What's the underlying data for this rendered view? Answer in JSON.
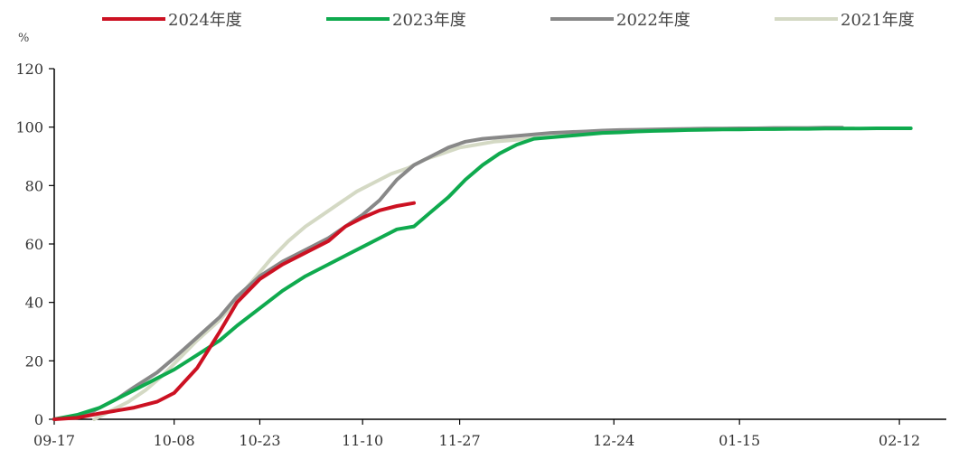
{
  "chart_data": {
    "type": "line",
    "ylabel": "%",
    "ylim": [
      0,
      120
    ],
    "yticks": [
      0,
      20,
      40,
      60,
      80,
      100,
      120
    ],
    "xlim": [
      0,
      154
    ],
    "xticks": [
      {
        "label": "09-17",
        "x": 0
      },
      {
        "label": "10-08",
        "x": 21
      },
      {
        "label": "10-23",
        "x": 36
      },
      {
        "label": "11-10",
        "x": 54
      },
      {
        "label": "11-27",
        "x": 71
      },
      {
        "label": "12-24",
        "x": 98
      },
      {
        "label": "01-15",
        "x": 120
      },
      {
        "label": "02-12",
        "x": 148
      }
    ],
    "legend_position": "top",
    "grid": false,
    "series": [
      {
        "name": "2024年度",
        "color": "#cc1122",
        "x": [
          0,
          4,
          8,
          11,
          14,
          18,
          21,
          25,
          29,
          32,
          36,
          40,
          44,
          48,
          51,
          54,
          57,
          60,
          63
        ],
        "y": [
          0,
          0.5,
          2,
          3,
          4,
          6,
          9,
          17.5,
          30,
          40,
          48,
          53,
          57,
          61,
          66,
          69,
          71.5,
          73,
          74
        ]
      },
      {
        "name": "2023年度",
        "color": "#0faa4e",
        "x": [
          0,
          4,
          8,
          11,
          14,
          18,
          21,
          25,
          29,
          32,
          36,
          40,
          44,
          48,
          51,
          54,
          57,
          60,
          63,
          66,
          69,
          72,
          75,
          78,
          81,
          84,
          87,
          90,
          93,
          96,
          99,
          102,
          105,
          108,
          111,
          114,
          117,
          120,
          123,
          126,
          129,
          132,
          135,
          138,
          141,
          144,
          147,
          150
        ],
        "y": [
          0,
          1.5,
          4,
          7,
          10,
          14,
          17,
          22,
          27,
          32,
          38,
          44,
          49,
          53,
          56,
          59,
          62,
          65,
          66,
          71,
          76,
          82,
          87,
          91,
          94,
          96,
          96.5,
          97,
          97.5,
          98,
          98.2,
          98.5,
          98.7,
          98.8,
          99,
          99.1,
          99.2,
          99.2,
          99.3,
          99.3,
          99.4,
          99.4,
          99.5,
          99.5,
          99.5,
          99.6,
          99.6,
          99.6
        ]
      },
      {
        "name": "2022年度",
        "color": "#888888",
        "x": [
          5,
          8,
          11,
          14,
          18,
          21,
          25,
          29,
          32,
          36,
          40,
          44,
          48,
          51,
          54,
          57,
          60,
          63,
          66,
          69,
          72,
          75,
          78,
          81,
          84,
          87,
          90,
          93,
          96,
          99,
          102,
          105,
          108,
          111,
          114,
          117,
          120,
          123,
          126,
          129,
          132,
          135,
          138
        ],
        "y": [
          1,
          4,
          7,
          11,
          16,
          21,
          28,
          35,
          42,
          49,
          54,
          58,
          62,
          66,
          70,
          75,
          82,
          87,
          90,
          93,
          95,
          96,
          96.5,
          97,
          97.5,
          98,
          98.3,
          98.5,
          98.8,
          99,
          99.1,
          99.2,
          99.3,
          99.4,
          99.5,
          99.5,
          99.6,
          99.6,
          99.7,
          99.7,
          99.7,
          99.8,
          99.8
        ]
      },
      {
        "name": "2021年度",
        "color": "#d4d9c4",
        "x": [
          7,
          10,
          13,
          16,
          19,
          22,
          25,
          29,
          32,
          35,
          38,
          41,
          44,
          47,
          50,
          53,
          56,
          59,
          62,
          65,
          68,
          71,
          74,
          77,
          80,
          83,
          86,
          89,
          92,
          95,
          98,
          101,
          104,
          107,
          110,
          113,
          116,
          119,
          122,
          125,
          128,
          131,
          134,
          137,
          140
        ],
        "y": [
          0,
          3,
          6,
          10,
          15,
          21,
          27,
          34,
          41,
          48,
          55,
          61,
          66,
          70,
          74,
          78,
          81,
          84,
          86,
          89,
          91,
          93,
          94,
          95,
          95.5,
          96,
          96.5,
          97,
          97.5,
          98,
          98.2,
          98.5,
          98.7,
          98.9,
          99,
          99.1,
          99.2,
          99.3,
          99.3,
          99.4,
          99.4,
          99.5,
          99.5,
          99.5,
          99.6
        ]
      }
    ]
  }
}
